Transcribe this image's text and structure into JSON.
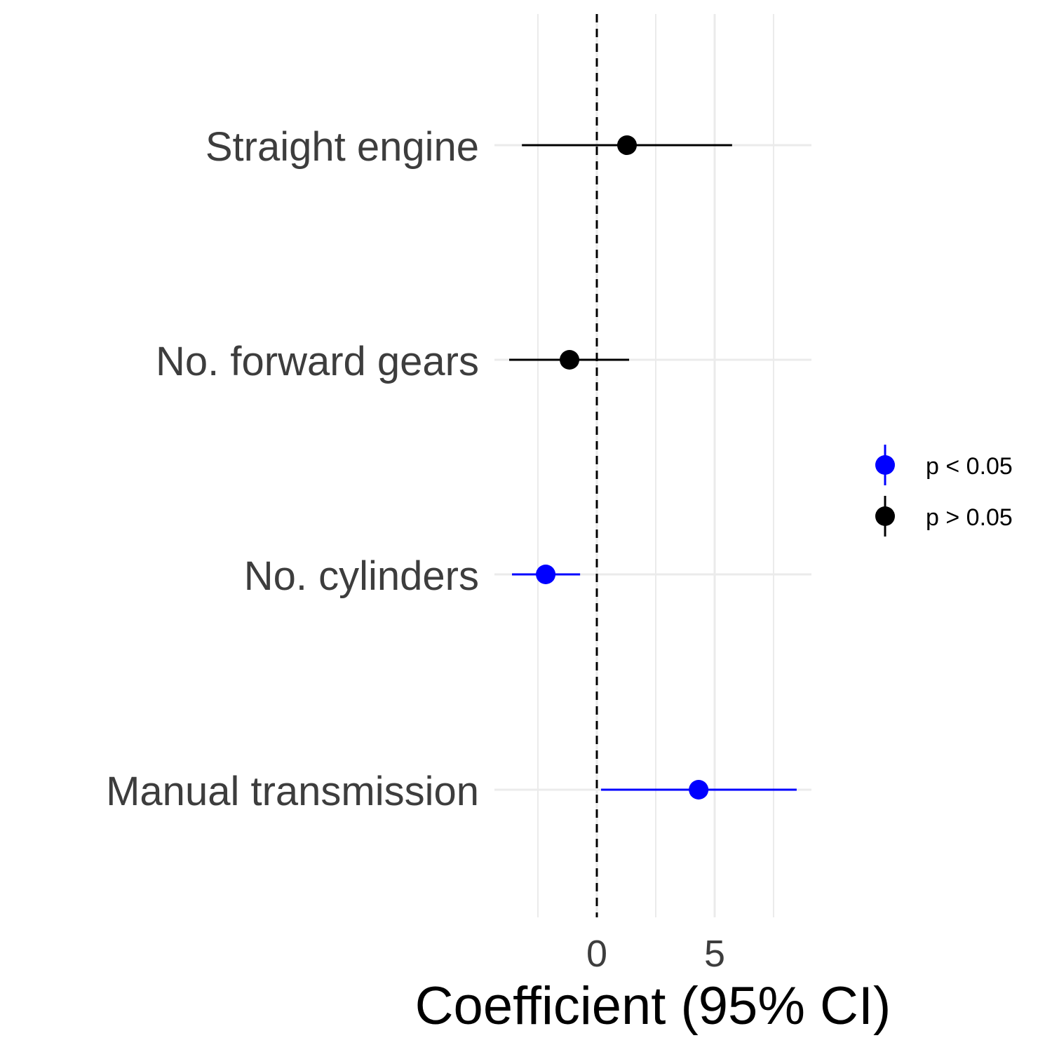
{
  "chart_data": {
    "type": "scatter",
    "subtype": "coefficient-plot",
    "xlabel": "Coefficient (95% CI)",
    "ylabel": "",
    "xlim": [
      -4.35,
      9.1
    ],
    "x_ticks": [
      0,
      5
    ],
    "x_tick_labels": [
      "0",
      "5"
    ],
    "x_minor_gridlines": [
      -2.5,
      2.5,
      7.5
    ],
    "reference_line": 0,
    "grid": true,
    "categories": [
      "Straight engine",
      "No. forward gears",
      "No. cylinders",
      "Manual transmission"
    ],
    "points": [
      {
        "label": "Straight engine",
        "estimate": 1.28,
        "ci_low": -3.18,
        "ci_high": 5.74,
        "group": "p > 0.05"
      },
      {
        "label": "No. forward gears",
        "estimate": -1.16,
        "ci_low": -3.72,
        "ci_high": 1.37,
        "group": "p > 0.05"
      },
      {
        "label": "No. cylinders",
        "estimate": -2.17,
        "ci_low": -3.6,
        "ci_high": -0.71,
        "group": "p < 0.05"
      },
      {
        "label": "Manual transmission",
        "estimate": 4.32,
        "ci_low": 0.18,
        "ci_high": 8.48,
        "group": "p < 0.05"
      }
    ],
    "legend": {
      "placement": "right",
      "entries": [
        {
          "label": "p < 0.05",
          "color": "#0000ff"
        },
        {
          "label": "p > 0.05",
          "color": "#000000"
        }
      ]
    }
  }
}
